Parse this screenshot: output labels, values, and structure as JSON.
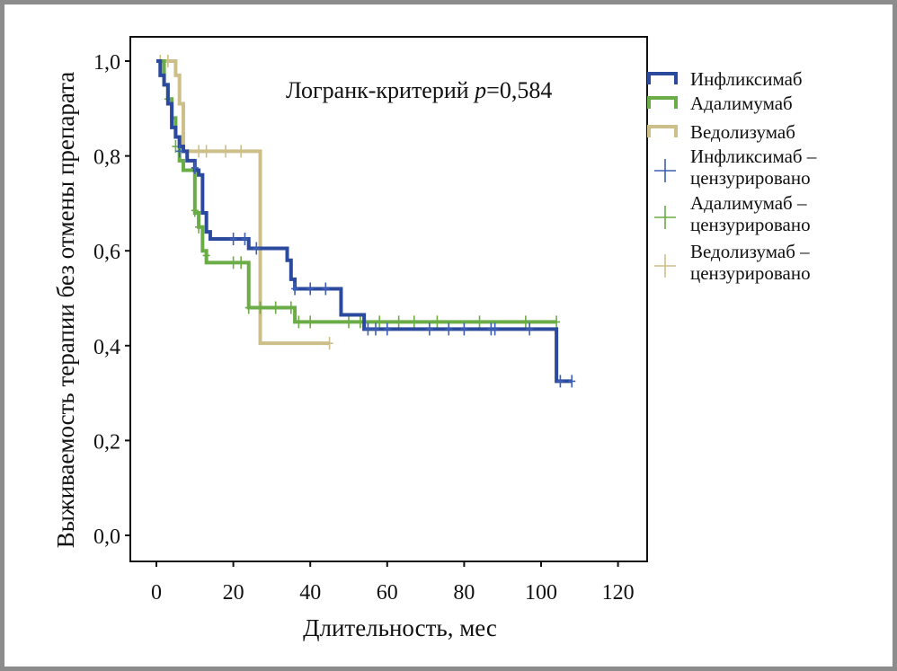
{
  "chart_data": {
    "type": "line",
    "subtype": "kaplan-meier",
    "xlabel": "Длительность, мес",
    "ylabel": "Выживаемость терапии без отмены препарата",
    "xlim": [
      0,
      120
    ],
    "ylim": [
      0.0,
      1.0
    ],
    "xticks": [
      0,
      20,
      40,
      60,
      80,
      100,
      120
    ],
    "xtick_labels": [
      "0",
      "20",
      "40",
      "60",
      "80",
      "100",
      "120"
    ],
    "yticks": [
      0.0,
      0.2,
      0.4,
      0.6,
      0.8,
      1.0
    ],
    "ytick_labels": [
      "0,0",
      "0,2",
      "0,4",
      "0,6",
      "0,8",
      "1,0"
    ],
    "annotation": {
      "prefix": "Логранк-критерий ",
      "italic": "p",
      "suffix": "=0,584"
    },
    "grid": false,
    "legend_position": "right, outside plot",
    "series": [
      {
        "name": "Инфликсимаб",
        "censored_label": "Инфликсимаб – цензурировано",
        "color": "#2b4a9e",
        "censor_color": "#3d5fb5",
        "steps": [
          [
            0,
            1.0
          ],
          [
            1,
            0.97
          ],
          [
            2,
            0.95
          ],
          [
            3,
            0.91
          ],
          [
            4,
            0.86
          ],
          [
            5,
            0.84
          ],
          [
            6,
            0.82
          ],
          [
            7,
            0.81
          ],
          [
            8,
            0.79
          ],
          [
            10,
            0.77
          ],
          [
            11,
            0.76
          ],
          [
            12,
            0.68
          ],
          [
            13,
            0.64
          ],
          [
            14,
            0.625
          ],
          [
            24,
            0.605
          ],
          [
            34,
            0.58
          ],
          [
            35,
            0.54
          ],
          [
            36,
            0.52
          ],
          [
            48,
            0.465
          ],
          [
            54,
            0.435
          ],
          [
            104,
            0.325
          ],
          [
            108,
            0.325
          ]
        ],
        "censored": [
          [
            6,
            0.81
          ],
          [
            10,
            0.775
          ],
          [
            20,
            0.625
          ],
          [
            23,
            0.625
          ],
          [
            26,
            0.605
          ],
          [
            36,
            0.52
          ],
          [
            40,
            0.52
          ],
          [
            44,
            0.52
          ],
          [
            55,
            0.435
          ],
          [
            57,
            0.435
          ],
          [
            60,
            0.435
          ],
          [
            71,
            0.435
          ],
          [
            76,
            0.435
          ],
          [
            80,
            0.435
          ],
          [
            87,
            0.435
          ],
          [
            88,
            0.435
          ],
          [
            97,
            0.435
          ],
          [
            105,
            0.325
          ],
          [
            108,
            0.325
          ]
        ]
      },
      {
        "name": "Адалимумаб",
        "censored_label": "Адалимумаб – цензурировано",
        "color": "#6aac46",
        "censor_color": "#6aac46",
        "steps": [
          [
            0,
            1.0
          ],
          [
            2,
            0.95
          ],
          [
            3,
            0.92
          ],
          [
            4,
            0.88
          ],
          [
            5,
            0.84
          ],
          [
            6,
            0.79
          ],
          [
            7,
            0.77
          ],
          [
            10,
            0.68
          ],
          [
            11,
            0.65
          ],
          [
            12,
            0.6
          ],
          [
            13,
            0.575
          ],
          [
            24,
            0.48
          ],
          [
            36,
            0.45
          ],
          [
            104,
            0.45
          ]
        ],
        "censored": [
          [
            3,
            0.92
          ],
          [
            5,
            0.82
          ],
          [
            10,
            0.685
          ],
          [
            11,
            0.65
          ],
          [
            13,
            0.59
          ],
          [
            20,
            0.575
          ],
          [
            22,
            0.575
          ],
          [
            24,
            0.48
          ],
          [
            27,
            0.48
          ],
          [
            31,
            0.48
          ],
          [
            35,
            0.48
          ],
          [
            37,
            0.45
          ],
          [
            40,
            0.45
          ],
          [
            50,
            0.45
          ],
          [
            53,
            0.45
          ],
          [
            58,
            0.45
          ],
          [
            63,
            0.45
          ],
          [
            67,
            0.45
          ],
          [
            73,
            0.45
          ],
          [
            84,
            0.45
          ],
          [
            96,
            0.45
          ],
          [
            104,
            0.45
          ]
        ]
      },
      {
        "name": "Ведолизумаб",
        "censored_label": "Ведолизумаб – цензурировано",
        "color": "#cdbf8a",
        "censor_color": "#cdbf8a",
        "steps": [
          [
            0,
            1.0
          ],
          [
            5,
            0.97
          ],
          [
            6,
            0.91
          ],
          [
            7,
            0.81
          ],
          [
            27,
            0.405
          ],
          [
            45,
            0.405
          ]
        ],
        "censored": [
          [
            1,
            1.0
          ],
          [
            3,
            1.0
          ],
          [
            11,
            0.81
          ],
          [
            13,
            0.81
          ],
          [
            18,
            0.81
          ],
          [
            22,
            0.81
          ],
          [
            45,
            0.405
          ]
        ]
      }
    ]
  }
}
